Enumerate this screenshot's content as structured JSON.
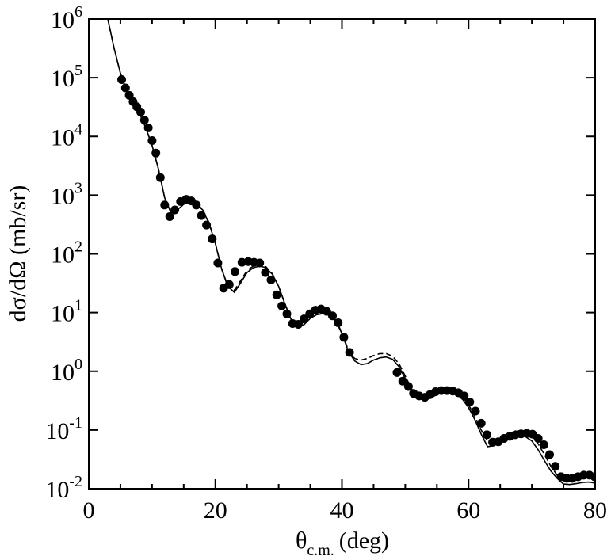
{
  "chart_data": {
    "type": "scatter",
    "xlabel": {
      "symbol": "θ",
      "subscript": "c.m.",
      "unit": "(deg)"
    },
    "ylabel": "dσ/dΩ (mb/sr)",
    "xlim": [
      0,
      80
    ],
    "ylim": [
      0.01,
      1000000
    ],
    "yscale": "log",
    "grid": false,
    "x_ticks": [
      "0",
      "20",
      "40",
      "60",
      "80"
    ],
    "y_ticks": [
      {
        "base": "10",
        "exp": "-2"
      },
      {
        "base": "10",
        "exp": "-1"
      },
      {
        "base": "10",
        "exp": "0"
      },
      {
        "base": "10",
        "exp": "1"
      },
      {
        "base": "10",
        "exp": "2"
      },
      {
        "base": "10",
        "exp": "3"
      },
      {
        "base": "10",
        "exp": "4"
      },
      {
        "base": "10",
        "exp": "5"
      },
      {
        "base": "10",
        "exp": "6"
      }
    ],
    "series": [
      {
        "style": "markers",
        "color": "#000000",
        "x": [
          5.2,
          5.8,
          6.4,
          7.0,
          7.6,
          8.2,
          8.8,
          9.4,
          10.0,
          10.6,
          11.3,
          12.0,
          12.8,
          13.6,
          14.5,
          15.4,
          16.2,
          17.0,
          17.8,
          18.6,
          19.5,
          20.4,
          21.3,
          22.2,
          23.1,
          24.2,
          25.2,
          26.1,
          27.0,
          27.9,
          28.8,
          29.7,
          30.5,
          31.3,
          32.2,
          33.1,
          34.0,
          34.9,
          35.8,
          36.7,
          37.6,
          38.5,
          39.4,
          40.3,
          41.2,
          48.7,
          49.6,
          50.5,
          51.3,
          52.2,
          53.1,
          53.9,
          54.8,
          55.7,
          56.6,
          57.5,
          58.4,
          59.3,
          60.2,
          61.1,
          62.0,
          62.9,
          63.8,
          64.7,
          65.6,
          66.5,
          67.4,
          68.3,
          69.2,
          70.1,
          71.0,
          71.9,
          72.8,
          73.7,
          74.6,
          75.5,
          76.4,
          77.3,
          78.2,
          79.1,
          79.9
        ],
        "y": [
          93000,
          67000,
          50000,
          39000,
          32000,
          26000,
          19000,
          14000,
          8500,
          5200,
          2000,
          680,
          430,
          560,
          780,
          850,
          800,
          680,
          450,
          310,
          180,
          70,
          26,
          30,
          50,
          72,
          74,
          72,
          70,
          48,
          36,
          20,
          13,
          9.5,
          6.5,
          6.3,
          7.8,
          9.5,
          11,
          11.5,
          10.5,
          8.8,
          6.7,
          3.8,
          2.1,
          0.95,
          0.68,
          0.55,
          0.42,
          0.38,
          0.36,
          0.4,
          0.45,
          0.47,
          0.47,
          0.46,
          0.43,
          0.38,
          0.3,
          0.21,
          0.13,
          0.083,
          0.062,
          0.063,
          0.072,
          0.078,
          0.083,
          0.086,
          0.088,
          0.085,
          0.072,
          0.056,
          0.038,
          0.024,
          0.016,
          0.015,
          0.015,
          0.016,
          0.017,
          0.017,
          0.016
        ]
      },
      {
        "style": "solid",
        "color": "#000000",
        "x": [
          3.0,
          4.0,
          5.0,
          6.0,
          7.0,
          8.0,
          9.0,
          10.0,
          11.0,
          12.0,
          13.0,
          14.0,
          15.0,
          16.0,
          17.0,
          18.0,
          19.0,
          20.0,
          21.0,
          22.0,
          23.0,
          24.0,
          25.0,
          26.0,
          27.0,
          28.0,
          29.0,
          30.0,
          31.0,
          32.0,
          33.0,
          34.0,
          35.0,
          36.0,
          37.0,
          38.0,
          39.0,
          40.0,
          41.0,
          42.0,
          43.0,
          44.0,
          45.0,
          46.0,
          47.0,
          48.0,
          49.0,
          50.0,
          51.0,
          52.0,
          53.0,
          54.0,
          55.0,
          56.0,
          57.0,
          58.0,
          59.0,
          60.0,
          61.0,
          62.0,
          63.0,
          64.0,
          65.0,
          66.0,
          67.0,
          68.0,
          69.0,
          70.0,
          71.0,
          72.0,
          73.0,
          74.0,
          75.0,
          76.0,
          77.0,
          78.0,
          79.0,
          80.0
        ],
        "y": [
          1000000,
          320000,
          120000,
          60000,
          40000,
          25000,
          14000,
          7000,
          2800,
          900,
          500,
          560,
          700,
          760,
          700,
          560,
          330,
          150,
          55,
          28,
          22,
          32,
          48,
          58,
          62,
          58,
          45,
          28,
          14,
          7.5,
          5.8,
          6.2,
          8.0,
          9.2,
          9.6,
          9.0,
          7.2,
          4.4,
          2.2,
          1.5,
          1.3,
          1.35,
          1.55,
          1.7,
          1.75,
          1.6,
          1.2,
          0.75,
          0.47,
          0.36,
          0.33,
          0.35,
          0.4,
          0.44,
          0.44,
          0.41,
          0.34,
          0.24,
          0.15,
          0.085,
          0.052,
          0.054,
          0.065,
          0.075,
          0.081,
          0.082,
          0.077,
          0.065,
          0.046,
          0.03,
          0.02,
          0.015,
          0.012,
          0.0118,
          0.0122,
          0.0128,
          0.013,
          0.0125
        ]
      },
      {
        "style": "dashed",
        "color": "#000000",
        "x": [
          3.0,
          4.0,
          5.0,
          6.0,
          7.0,
          8.0,
          9.0,
          10.0,
          11.0,
          12.0,
          13.0,
          14.0,
          15.0,
          16.0,
          17.0,
          18.0,
          19.0,
          20.0,
          21.0,
          22.0,
          23.0,
          24.0,
          25.0,
          26.0,
          27.0,
          28.0,
          29.0,
          30.0,
          31.0,
          32.0,
          33.0,
          34.0,
          35.0,
          36.0,
          37.0,
          38.0,
          39.0,
          40.0,
          41.0,
          42.0,
          43.0,
          44.0,
          45.0,
          46.0,
          47.0,
          48.0,
          49.0,
          50.0,
          51.0,
          52.0,
          53.0,
          54.0,
          55.0,
          56.0,
          57.0,
          58.0,
          59.0,
          60.0,
          61.0,
          62.0,
          63.0,
          64.0,
          65.0,
          66.0,
          67.0,
          68.0,
          69.0,
          70.0,
          71.0,
          72.0,
          73.0,
          74.0,
          75.0,
          76.0,
          77.0,
          78.0,
          79.0,
          80.0
        ],
        "y": [
          1000000,
          320000,
          120000,
          60000,
          40000,
          25000,
          14000,
          7000,
          2800,
          900,
          500,
          570,
          720,
          780,
          720,
          570,
          340,
          150,
          55,
          27,
          24,
          35,
          52,
          62,
          66,
          60,
          46,
          28,
          14,
          7.4,
          6.0,
          6.8,
          8.8,
          10.2,
          10.6,
          9.8,
          7.6,
          4.5,
          2.3,
          1.65,
          1.55,
          1.65,
          1.85,
          2.0,
          2.0,
          1.8,
          1.35,
          0.83,
          0.5,
          0.36,
          0.34,
          0.37,
          0.43,
          0.47,
          0.47,
          0.44,
          0.37,
          0.27,
          0.17,
          0.1,
          0.065,
          0.063,
          0.073,
          0.085,
          0.093,
          0.096,
          0.092,
          0.08,
          0.058,
          0.038,
          0.024,
          0.017,
          0.0145,
          0.015,
          0.016,
          0.017,
          0.0175,
          0.017
        ]
      }
    ]
  }
}
